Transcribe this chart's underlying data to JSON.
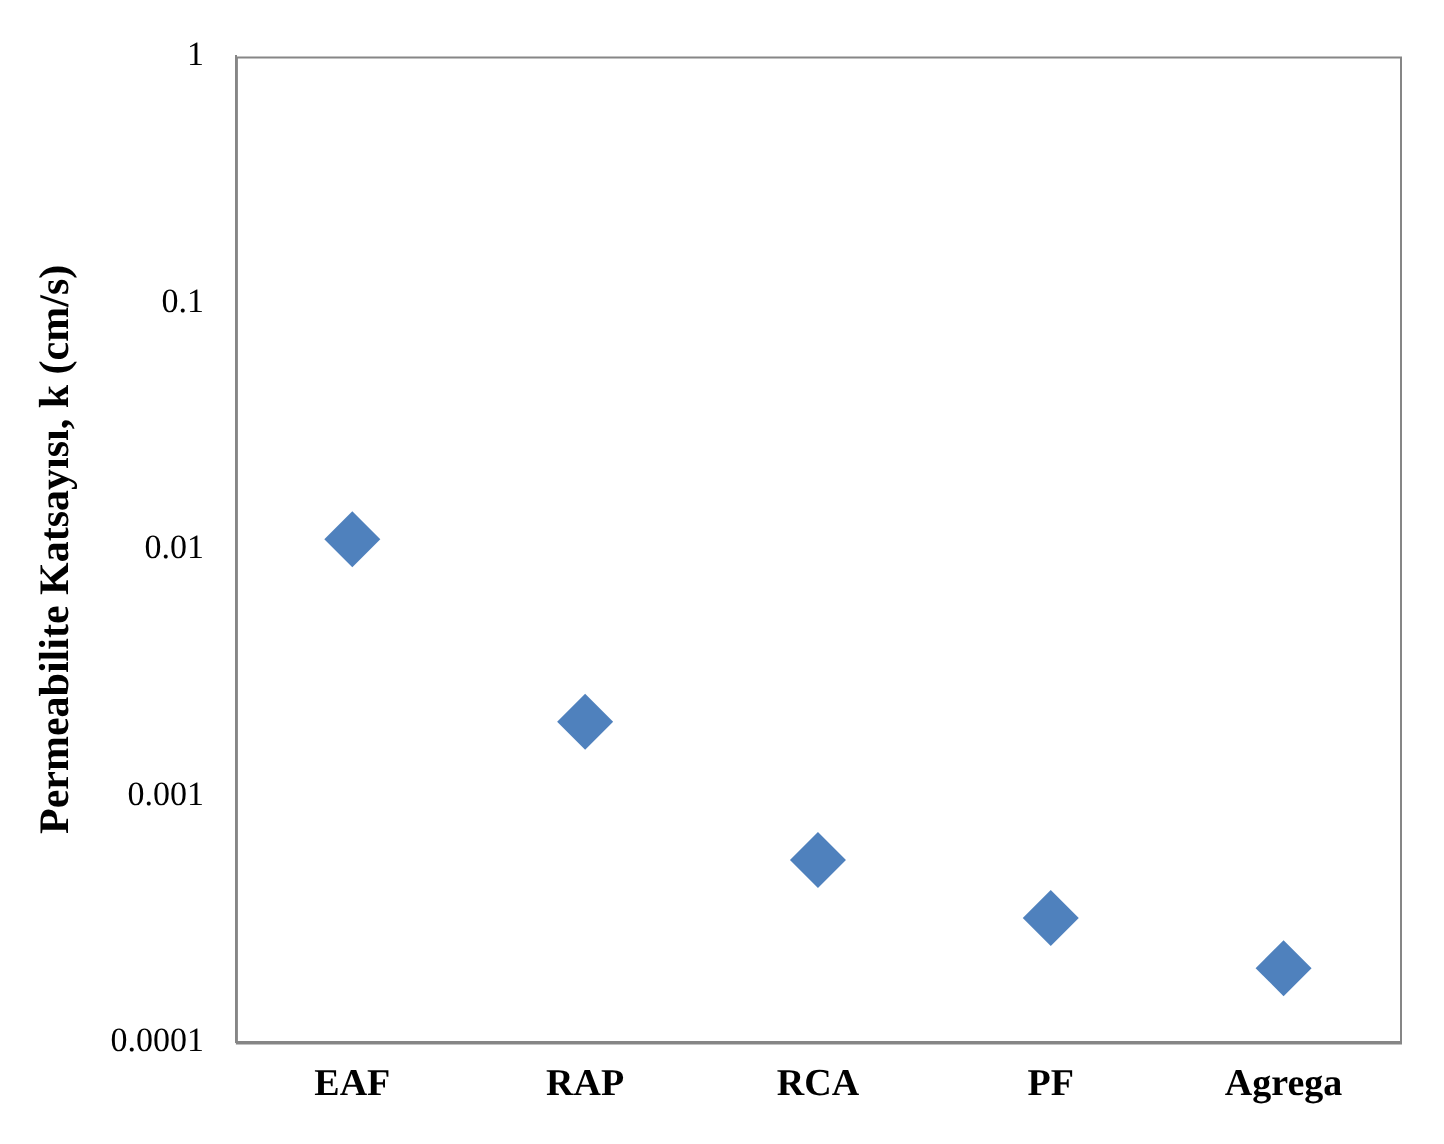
{
  "chart_data": {
    "type": "scatter",
    "ylabel": "Permeabilite Katsayısı, k (cm/s)",
    "categories": [
      "EAF",
      "RAP",
      "RCA",
      "PF",
      "Agrega"
    ],
    "values": [
      0.011,
      0.002,
      0.00055,
      0.00032,
      0.0002
    ],
    "color": "#4f81bd",
    "marker": "diamond",
    "log": true,
    "ylim": [
      0.0001,
      1
    ],
    "yticks": [
      0.0001,
      0.001,
      0.01,
      0.1,
      1
    ],
    "grid": false
  }
}
